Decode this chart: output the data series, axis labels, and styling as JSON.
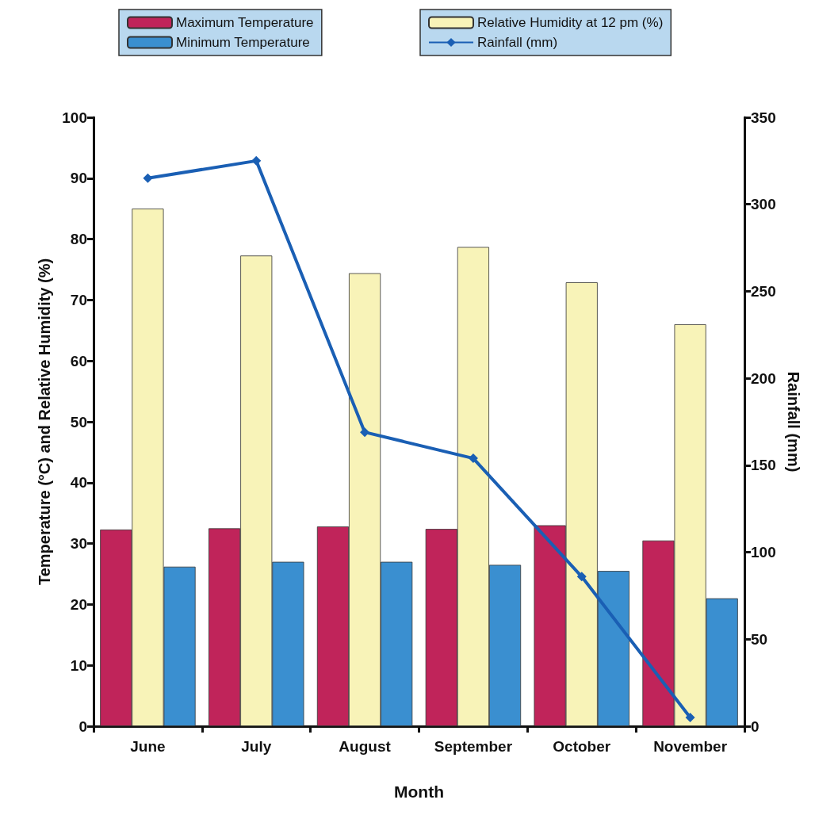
{
  "chart_data": {
    "type": "bar",
    "xlabel": "Month",
    "ylabel": "Temperature (°C) and Relative Humidity (%)",
    "y2label": "Rainfall (mm)",
    "categories": [
      "June",
      "July",
      "August",
      "September",
      "October",
      "November"
    ],
    "series": [
      {
        "name": "Maximum Temperature",
        "color": "#c0245a",
        "values": [
          32.3,
          32.5,
          32.8,
          32.4,
          33.0,
          30.5
        ]
      },
      {
        "name": "Relative Humidity at 12 pm (%)",
        "color": "#f8f3b8",
        "values": [
          85.0,
          77.3,
          74.4,
          78.7,
          72.9,
          66.0
        ]
      },
      {
        "name": "Minimum Temperature",
        "color": "#3a8fd0",
        "values": [
          26.2,
          27.0,
          27.0,
          26.5,
          25.5,
          21.0
        ]
      },
      {
        "name": "Rainfall (mm)",
        "type": "line",
        "axis": "y2",
        "color": "#1a5fb4",
        "marker": "diamond",
        "values": [
          315,
          325,
          169,
          154,
          86,
          5
        ]
      }
    ],
    "ylim": [
      0,
      100
    ],
    "yticks": [
      0,
      10,
      20,
      30,
      40,
      50,
      60,
      70,
      80,
      90,
      100
    ],
    "y2lim": [
      0,
      350
    ],
    "y2ticks": [
      0,
      50,
      100,
      150,
      200,
      250,
      300,
      350
    ],
    "grid": false,
    "legend": "top"
  }
}
